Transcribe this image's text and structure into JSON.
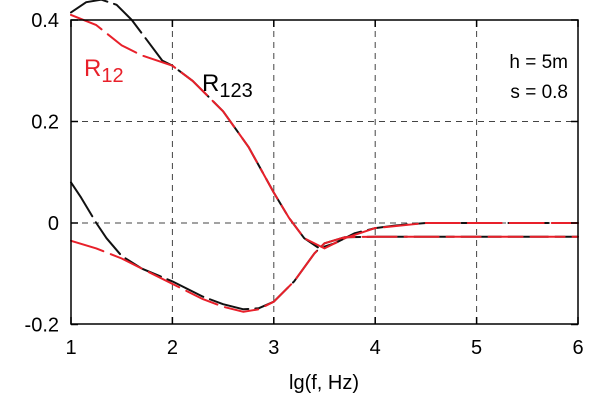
{
  "chart_data": {
    "type": "line",
    "xlabel": "lg(f, Hz)",
    "ylabel": "",
    "xlim": [
      1,
      6
    ],
    "ylim": [
      -0.2,
      0.45
    ],
    "xticks": [
      1,
      2,
      3,
      4,
      5,
      6
    ],
    "xtick_labels": [
      "1",
      "2",
      "3",
      "4",
      "5",
      "6"
    ],
    "yticks": [
      -0.2,
      0,
      0.2,
      0.4
    ],
    "ytick_labels": [
      "-0.2",
      "0",
      "0.2",
      "0.4"
    ],
    "grid": true,
    "grid_style": "dashed",
    "annotations": [
      "h = 5m",
      "s = 0.8"
    ],
    "series": [
      {
        "name": "R12",
        "label_main": "R",
        "label_sub": "12",
        "color": "#e8202a",
        "style": "dashed",
        "curves": [
          [
            [
              1,
              0.41
            ],
            [
              1.25,
              0.39
            ],
            [
              1.5,
              0.35
            ],
            [
              1.7,
              0.33
            ],
            [
              2.0,
              0.31
            ],
            [
              2.2,
              0.28
            ],
            [
              2.5,
              0.22
            ],
            [
              2.75,
              0.15
            ],
            [
              3.0,
              0.06
            ],
            [
              3.15,
              0.01
            ],
            [
              3.3,
              -0.03
            ],
            [
              3.5,
              -0.05
            ],
            [
              3.7,
              -0.03
            ],
            [
              4.0,
              -0.01
            ],
            [
              4.5,
              0.0
            ],
            [
              5.0,
              0.0
            ],
            [
              5.5,
              0.0
            ],
            [
              6.0,
              0.0
            ]
          ],
          [
            [
              1,
              -0.035
            ],
            [
              1.25,
              -0.05
            ],
            [
              1.5,
              -0.07
            ],
            [
              1.7,
              -0.09
            ],
            [
              2.0,
              -0.12
            ],
            [
              2.3,
              -0.15
            ],
            [
              2.5,
              -0.165
            ],
            [
              2.7,
              -0.175
            ],
            [
              2.85,
              -0.17
            ],
            [
              3.0,
              -0.155
            ],
            [
              3.2,
              -0.115
            ],
            [
              3.4,
              -0.06
            ],
            [
              3.5,
              -0.04
            ],
            [
              3.7,
              -0.028
            ],
            [
              4.0,
              -0.027
            ],
            [
              4.5,
              -0.027
            ],
            [
              5.0,
              -0.027
            ],
            [
              5.5,
              -0.027
            ],
            [
              6.0,
              -0.027
            ]
          ]
        ]
      },
      {
        "name": "R123",
        "label_main": "R",
        "label_sub": "123",
        "color": "#111111",
        "style": "dashed",
        "curves": [
          [
            [
              1,
              0.415
            ],
            [
              1.15,
              0.435
            ],
            [
              1.3,
              0.44
            ],
            [
              1.45,
              0.43
            ],
            [
              1.6,
              0.4
            ],
            [
              1.75,
              0.36
            ],
            [
              1.9,
              0.32
            ],
            [
              2.0,
              0.31
            ],
            [
              2.2,
              0.28
            ],
            [
              2.5,
              0.22
            ],
            [
              2.75,
              0.15
            ],
            [
              3.0,
              0.06
            ],
            [
              3.15,
              0.01
            ],
            [
              3.3,
              -0.03
            ],
            [
              3.45,
              -0.05
            ],
            [
              3.6,
              -0.04
            ],
            [
              3.8,
              -0.02
            ],
            [
              4.0,
              -0.01
            ],
            [
              4.2,
              -0.005
            ],
            [
              4.5,
              0.0
            ],
            [
              5.0,
              0.0
            ],
            [
              5.5,
              0.0
            ],
            [
              6.0,
              0.0
            ]
          ],
          [
            [
              1,
              0.08
            ],
            [
              1.1,
              0.05
            ],
            [
              1.25,
              0.0
            ],
            [
              1.35,
              -0.03
            ],
            [
              1.5,
              -0.065
            ],
            [
              1.7,
              -0.09
            ],
            [
              2.0,
              -0.115
            ],
            [
              2.3,
              -0.145
            ],
            [
              2.5,
              -0.16
            ],
            [
              2.7,
              -0.17
            ],
            [
              2.85,
              -0.168
            ],
            [
              3.0,
              -0.155
            ],
            [
              3.2,
              -0.115
            ],
            [
              3.4,
              -0.06
            ],
            [
              3.5,
              -0.04
            ],
            [
              3.7,
              -0.028
            ],
            [
              4.0,
              -0.027
            ],
            [
              4.5,
              -0.027
            ],
            [
              5.0,
              -0.027
            ],
            [
              5.5,
              -0.027
            ],
            [
              6.0,
              -0.027
            ]
          ]
        ]
      }
    ]
  }
}
